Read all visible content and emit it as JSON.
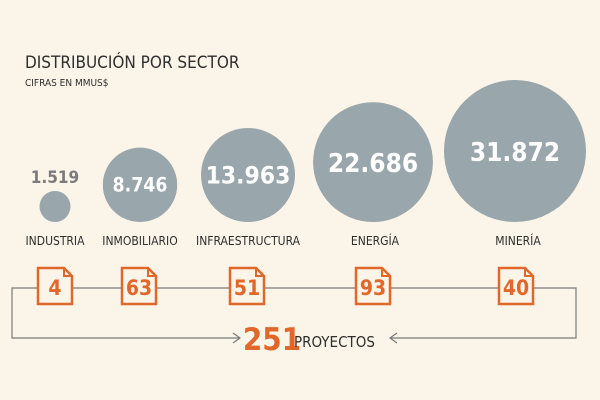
{
  "chart_data": {
    "type": "bubble",
    "title": "DISTRIBUCIÓN  POR SECTOR",
    "subtitle": "CIFRAS EN MMUS$",
    "categories": [
      "INDUSTRIA",
      "INMOBILIARIO",
      "INFRAESTRUCTURA",
      "ENERGÍA",
      "MINERÍA"
    ],
    "values": [
      1519,
      8746,
      13963,
      22686,
      31872
    ],
    "value_labels": [
      "1.519",
      "8.746",
      "13.963",
      "22.686",
      "31.872"
    ],
    "projects": [
      4,
      63,
      51,
      93,
      40
    ],
    "total_projects": "251",
    "total_label": "PROYECTOS"
  },
  "colors": {
    "background": "#fbf5e9",
    "bubble": "#99a6ab",
    "accent": "#e2672a",
    "text": "#2e2e2e",
    "line": "#7a7a7a"
  }
}
